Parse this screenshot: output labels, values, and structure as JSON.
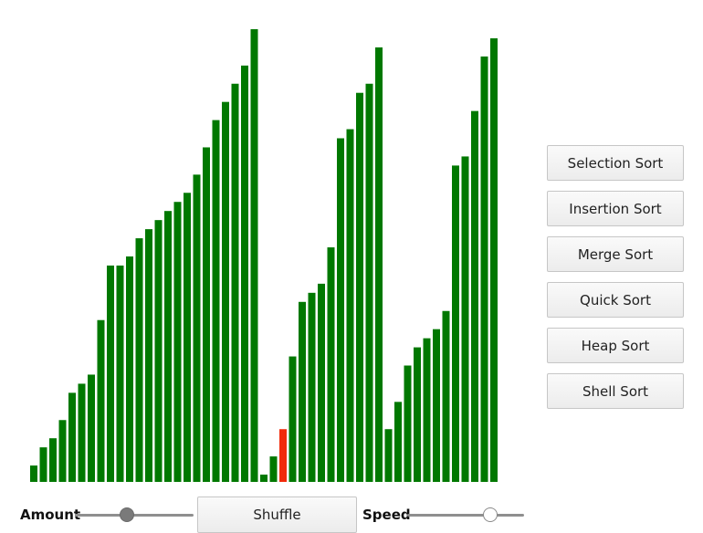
{
  "chart_data": {
    "type": "bar",
    "xlabel": "",
    "ylabel": "",
    "ylim": [
      0,
      500
    ],
    "series": [
      {
        "values": [
          18,
          38,
          48,
          68,
          98,
          108,
          118,
          178,
          238,
          238,
          248,
          268,
          278,
          288,
          298,
          308,
          318,
          338,
          368,
          398,
          418,
          438,
          458,
          498,
          8,
          28,
          58,
          138,
          198,
          208,
          218,
          258,
          378,
          388,
          428,
          438,
          478,
          58,
          88,
          128,
          148,
          158,
          168,
          188,
          348,
          358,
          408,
          468,
          488
        ],
        "colors": [
          "#007800",
          "#007800",
          "#007800",
          "#007800",
          "#007800",
          "#007800",
          "#007800",
          "#007800",
          "#007800",
          "#007800",
          "#007800",
          "#007800",
          "#007800",
          "#007800",
          "#007800",
          "#007800",
          "#007800",
          "#007800",
          "#007800",
          "#007800",
          "#007800",
          "#007800",
          "#007800",
          "#007800",
          "#007800",
          "#007800",
          "#f22a0a",
          "#007800",
          "#007800",
          "#007800",
          "#007800",
          "#007800",
          "#007800",
          "#007800",
          "#007800",
          "#007800",
          "#007800",
          "#007800",
          "#007800",
          "#007800",
          "#007800",
          "#007800",
          "#007800",
          "#007800",
          "#007800",
          "#007800",
          "#007800",
          "#007800",
          "#007800"
        ]
      }
    ],
    "grid": false,
    "legend": "none"
  },
  "colors": {
    "bar": "#007800",
    "highlight": "#f22a0a"
  },
  "sort_buttons": [
    "Selection Sort",
    "Insertion Sort",
    "Merge Sort",
    "Quick Sort",
    "Heap Sort",
    "Shell Sort"
  ],
  "controls": {
    "amount_label": "Amount",
    "amount_value": 0.43,
    "shuffle_label": "Shuffle",
    "speed_label": "Speed",
    "speed_value": 0.74
  }
}
